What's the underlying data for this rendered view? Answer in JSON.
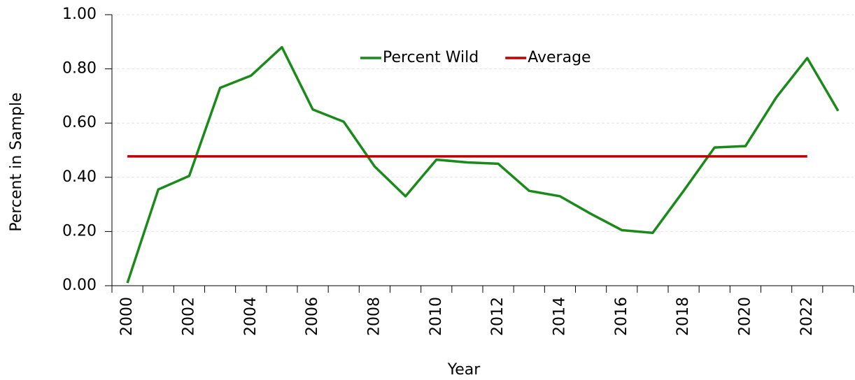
{
  "chart_data": {
    "type": "line",
    "x_label": "Year",
    "y_label": "Percent in Sample",
    "categories": [
      "2000",
      null,
      "2002",
      null,
      "2004",
      null,
      "2006",
      null,
      "2008",
      null,
      "2010",
      null,
      "2012",
      null,
      "2014",
      null,
      "2016",
      null,
      "2018",
      null,
      "2020",
      null,
      "2022",
      null
    ],
    "series": [
      {
        "name": "Percent Wild",
        "color": "#1a8a1a",
        "values": [
          0.01,
          0.355,
          0.405,
          0.73,
          0.775,
          0.88,
          0.65,
          0.605,
          0.44,
          0.33,
          0.465,
          0.455,
          0.45,
          0.35,
          0.33,
          0.265,
          0.205,
          0.195,
          0.35,
          0.51,
          0.515,
          0.695,
          0.84,
          0.645
        ]
      },
      {
        "name": "Average",
        "color": "#c00000",
        "values": [
          0.477,
          0.477,
          0.477,
          0.477,
          0.477,
          0.477,
          0.477,
          0.477,
          0.477,
          0.477,
          0.477,
          0.477,
          0.477,
          0.477,
          0.477,
          0.477,
          0.477,
          0.477,
          0.477,
          0.477,
          0.477,
          0.477,
          0.477,
          null
        ]
      }
    ],
    "ylim": [
      0,
      1
    ],
    "yticks": [
      {
        "value": 0,
        "label": "0.00"
      },
      {
        "value": 0.2,
        "label": "0.20"
      },
      {
        "value": 0.4,
        "label": "0.40"
      },
      {
        "value": 0.6,
        "label": "0.60"
      },
      {
        "value": 0.8,
        "label": "0.80"
      },
      {
        "value": 1,
        "label": "1.00"
      }
    ],
    "grid": true,
    "legend": "top"
  }
}
